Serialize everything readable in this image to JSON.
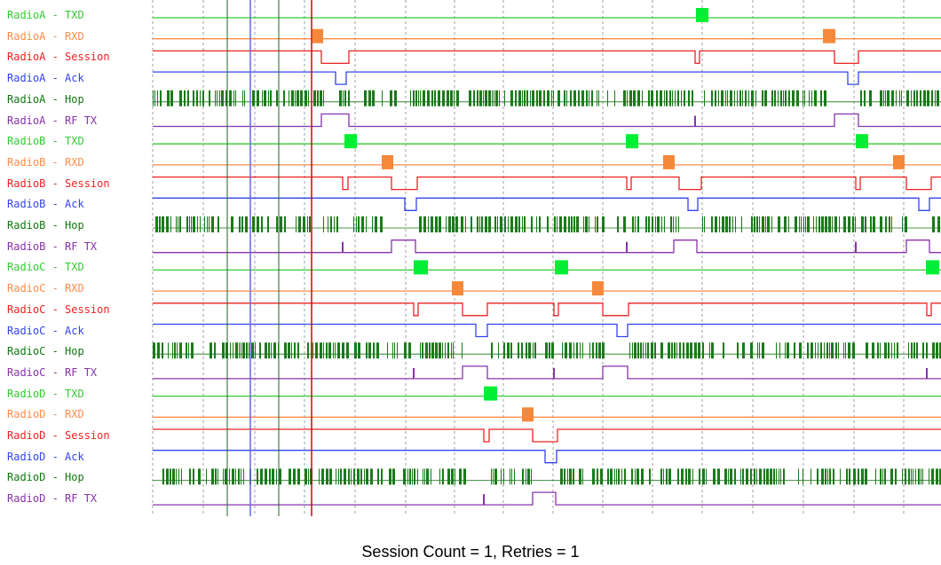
{
  "colors": {
    "TXD": "#33cc33",
    "RXD": "#ff8c4a",
    "Session": "#ee2222",
    "Ack": "#3344ee",
    "Hop": "#117711",
    "RF TX": "#8833aa",
    "txd_pulse": "#00ee33",
    "rxd_pulse": "#f5883a",
    "hop_fill": "#1a7a1a",
    "grid": "#888888",
    "marker_blue": "#6666ee",
    "marker_green": "#226622",
    "marker_red": "#dd0000"
  },
  "signals": [
    {
      "label": "RadioA - TXD",
      "type": "TXD"
    },
    {
      "label": "RadioA - RXD",
      "type": "RXD"
    },
    {
      "label": "RadioA - Session",
      "type": "Session"
    },
    {
      "label": "RadioA - Ack",
      "type": "Ack"
    },
    {
      "label": "RadioA - Hop",
      "type": "Hop"
    },
    {
      "label": "RadioA - RF TX",
      "type": "RF TX"
    },
    {
      "label": "RadioB - TXD",
      "type": "TXD"
    },
    {
      "label": "RadioB - RXD",
      "type": "RXD"
    },
    {
      "label": "RadioB - Session",
      "type": "Session"
    },
    {
      "label": "RadioB - Ack",
      "type": "Ack"
    },
    {
      "label": "RadioB - Hop",
      "type": "Hop"
    },
    {
      "label": "RadioB - RF TX",
      "type": "RF TX"
    },
    {
      "label": "RadioC - TXD",
      "type": "TXD"
    },
    {
      "label": "RadioC - RXD",
      "type": "RXD"
    },
    {
      "label": "RadioC - Session",
      "type": "Session"
    },
    {
      "label": "RadioC - Ack",
      "type": "Ack"
    },
    {
      "label": "RadioC - Hop",
      "type": "Hop"
    },
    {
      "label": "RadioC - RF TX",
      "type": "RF TX"
    },
    {
      "label": "RadioD - TXD",
      "type": "TXD"
    },
    {
      "label": "RadioD - RXD",
      "type": "RXD"
    },
    {
      "label": "RadioD - Session",
      "type": "Session"
    },
    {
      "label": "RadioD - Ack",
      "type": "Ack"
    },
    {
      "label": "RadioD - Hop",
      "type": "Hop"
    },
    {
      "label": "RadioD - RF TX",
      "type": "RF TX"
    }
  ],
  "caption": "Session Count = 1, Retries = 1"
}
